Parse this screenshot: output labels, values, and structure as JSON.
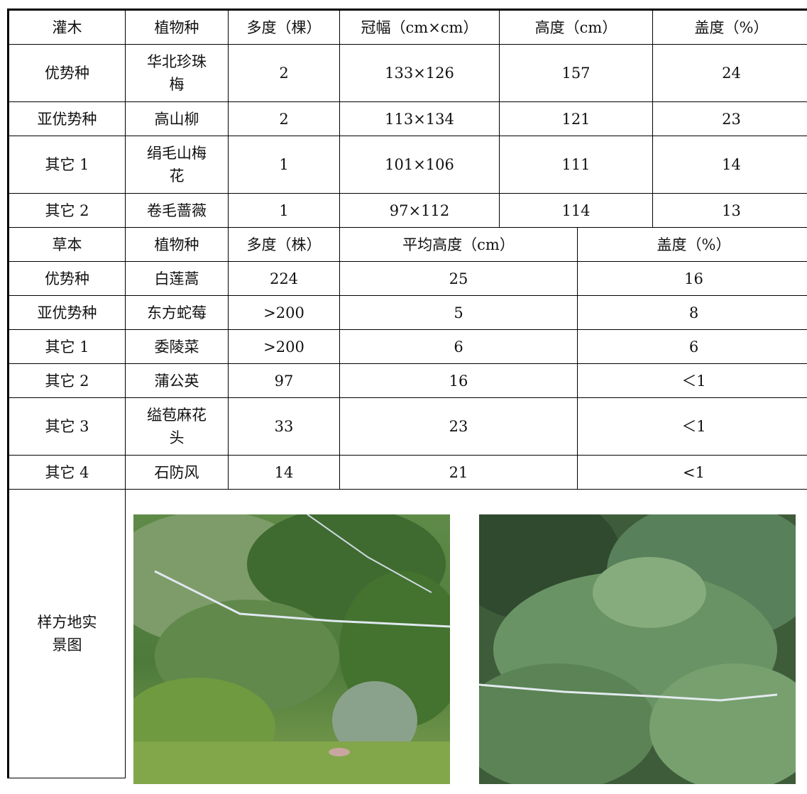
{
  "shrub_header": [
    "灌木",
    "植物种",
    "多度（棵）",
    "冠幅（cm×cm）",
    "高度（cm）",
    "盖度（%）"
  ],
  "shrub_rows": [
    {
      "rank": "优势种",
      "species": "华北珍珠梅",
      "abundance": "2",
      "crown": "133×126",
      "height": "157",
      "cover": "24"
    },
    {
      "rank": "亚优势种",
      "species": "高山柳",
      "abundance": "2",
      "crown": "113×134",
      "height": "121",
      "cover": "23"
    },
    {
      "rank": "其它 1",
      "species": "绢毛山梅花",
      "abundance": "1",
      "crown": "101×106",
      "height": "111",
      "cover": "14"
    },
    {
      "rank": "其它 2",
      "species": "卷毛蔷薇",
      "abundance": "1",
      "crown": "97×112",
      "height": "114",
      "cover": "13"
    }
  ],
  "herb_header": [
    "草本",
    "植物种",
    "多度（株）",
    "平均高度（cm）",
    "盖度（%）"
  ],
  "herb_rows": [
    {
      "rank": "优势种",
      "species": "白莲蒿",
      "abundance": "224",
      "height": "25",
      "cover": "16"
    },
    {
      "rank": "亚优势种",
      "species": "东方蛇莓",
      "abundance": ">200",
      "height": "5",
      "cover": "8"
    },
    {
      "rank": "其它 1",
      "species": "委陵菜",
      "abundance": ">200",
      "height": "6",
      "cover": "6"
    },
    {
      "rank": "其它 2",
      "species": "蒲公英",
      "abundance": "97",
      "height": "16",
      "cover": "＜1"
    },
    {
      "rank": "其它 3",
      "species": "缢苞麻花头",
      "abundance": "33",
      "height": "23",
      "cover": "＜1"
    },
    {
      "rank": "其它 4",
      "species": "石防风",
      "abundance": "14",
      "height": "21",
      "cover": "<1"
    }
  ],
  "photo_label": "样方地实景图"
}
